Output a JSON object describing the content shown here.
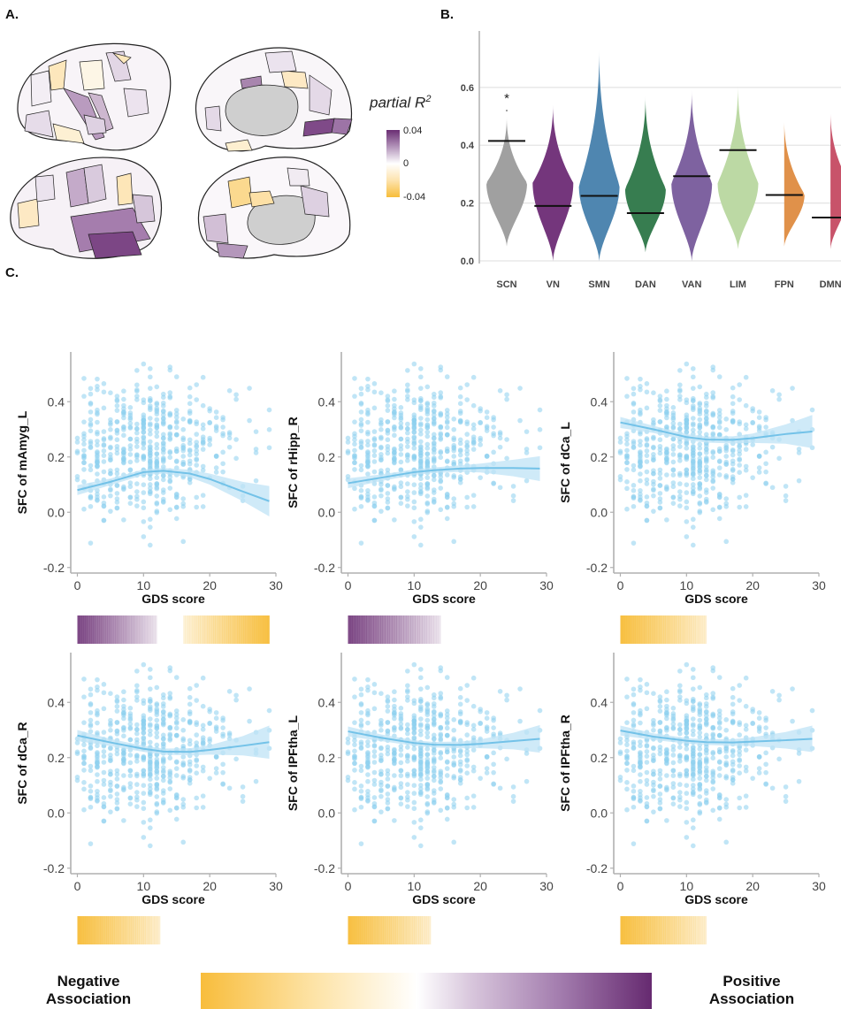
{
  "panels": {
    "a_label": "A.",
    "b_label": "B.",
    "c_label": "C."
  },
  "brain_maps": {
    "colorbar_title": "partial R",
    "colorbar_title_sup": "2",
    "colorbar_ticks": [
      "0.04",
      "0",
      "-0.04"
    ],
    "colors": {
      "positive": "#6a2d73",
      "zero": "#ffffff",
      "negative": "#f7bd3a",
      "medial_wall": "#cccccc"
    },
    "views": [
      "left-lateral",
      "left-medial",
      "right-lateral",
      "right-medial"
    ]
  },
  "legend": {
    "negative_line1": "Negative",
    "negative_line2": "Association",
    "positive_line1": "Positive",
    "positive_line2": "Association",
    "negative_color": "#f7bd3a",
    "positive_color": "#662a70"
  },
  "chart_data": [
    {
      "type": "violin",
      "id": "B",
      "categories": [
        "SCN",
        "VN",
        "SMN",
        "DAN",
        "VAN",
        "LIM",
        "FPN",
        "DMN"
      ],
      "colors": [
        "#a0a0a0",
        "#74367c",
        "#4f86b0",
        "#377d50",
        "#7e62a0",
        "#bcd9a4",
        "#e0914a",
        "#c8536a"
      ],
      "observed_lines": [
        0.415,
        0.19,
        0.225,
        0.165,
        0.293,
        0.383,
        0.228,
        0.15
      ],
      "violin_ranges": [
        [
          0.05,
          0.5
        ],
        [
          0.0,
          0.54
        ],
        [
          0.0,
          0.73
        ],
        [
          0.03,
          0.57
        ],
        [
          0.0,
          0.59
        ],
        [
          0.04,
          0.61
        ],
        [
          0.05,
          0.49
        ],
        [
          0.04,
          0.52
        ]
      ],
      "violin_modes": [
        0.27,
        0.27,
        0.26,
        0.25,
        0.27,
        0.27,
        0.23,
        0.26
      ],
      "significance": [
        {
          "category": "SCN",
          "label": "*",
          "y": 0.56
        }
      ],
      "yticks": [
        "0.0",
        "0.2",
        "0.4",
        "0.6"
      ],
      "ylim": [
        0.0,
        0.78
      ],
      "grid": true
    },
    {
      "type": "scatter",
      "id": "C1",
      "ylabel": "SFC of mAmyg_L",
      "xlabel": "GDS score",
      "xlim": [
        -1,
        30
      ],
      "ylim": [
        -0.22,
        0.58
      ],
      "xticks": [
        "0",
        "10",
        "20",
        "30"
      ],
      "yticks": [
        "-0.2",
        "0.0",
        "0.2",
        "0.4"
      ],
      "fit_x": [
        0,
        5,
        10,
        13,
        17,
        20,
        25,
        29
      ],
      "fit_y": [
        0.08,
        0.11,
        0.145,
        0.15,
        0.14,
        0.12,
        0.075,
        0.04
      ],
      "ci_halfwidth": [
        0.018,
        0.012,
        0.01,
        0.01,
        0.014,
        0.02,
        0.035,
        0.055
      ],
      "sig_bars": [
        {
          "from": 0,
          "to": 12,
          "direction": "positive"
        },
        {
          "from": 16,
          "to": 29,
          "direction": "negative"
        }
      ]
    },
    {
      "type": "scatter",
      "id": "C2",
      "ylabel": "SFC of rHipp_R",
      "xlabel": "GDS score",
      "xlim": [
        -1,
        30
      ],
      "ylim": [
        -0.22,
        0.58
      ],
      "xticks": [
        "0",
        "10",
        "20",
        "30"
      ],
      "yticks": [
        "-0.2",
        "0.0",
        "0.2",
        "0.4"
      ],
      "fit_x": [
        0,
        5,
        10,
        13,
        17,
        20,
        25,
        29
      ],
      "fit_y": [
        0.105,
        0.125,
        0.145,
        0.152,
        0.158,
        0.16,
        0.16,
        0.158
      ],
      "ci_halfwidth": [
        0.018,
        0.012,
        0.01,
        0.01,
        0.012,
        0.016,
        0.03,
        0.045
      ],
      "sig_bars": [
        {
          "from": 0,
          "to": 14,
          "direction": "positive"
        }
      ]
    },
    {
      "type": "scatter",
      "id": "C3",
      "ylabel": "SFC of dCa_L",
      "xlabel": "GDS score",
      "xlim": [
        -1,
        30
      ],
      "ylim": [
        -0.22,
        0.58
      ],
      "xticks": [
        "0",
        "10",
        "20",
        "30"
      ],
      "yticks": [
        "-0.2",
        "0.0",
        "0.2",
        "0.4"
      ],
      "fit_x": [
        0,
        5,
        10,
        13,
        17,
        20,
        25,
        29
      ],
      "fit_y": [
        0.325,
        0.3,
        0.272,
        0.263,
        0.262,
        0.268,
        0.283,
        0.292
      ],
      "ci_halfwidth": [
        0.02,
        0.013,
        0.011,
        0.011,
        0.013,
        0.017,
        0.035,
        0.06
      ],
      "sig_bars": [
        {
          "from": 0,
          "to": 13,
          "direction": "negative"
        }
      ]
    },
    {
      "type": "scatter",
      "id": "C4",
      "ylabel": "SFC of dCa_R",
      "xlabel": "GDS score",
      "xlim": [
        -1,
        30
      ],
      "ylim": [
        -0.22,
        0.58
      ],
      "xticks": [
        "0",
        "10",
        "20",
        "30"
      ],
      "yticks": [
        "-0.2",
        "0.0",
        "0.2",
        "0.4"
      ],
      "fit_x": [
        0,
        5,
        10,
        13,
        17,
        20,
        25,
        29
      ],
      "fit_y": [
        0.28,
        0.255,
        0.232,
        0.222,
        0.221,
        0.228,
        0.243,
        0.256
      ],
      "ci_halfwidth": [
        0.02,
        0.013,
        0.011,
        0.011,
        0.013,
        0.017,
        0.035,
        0.06
      ],
      "sig_bars": [
        {
          "from": 0,
          "to": 12.5,
          "direction": "negative"
        }
      ]
    },
    {
      "type": "scatter",
      "id": "C5",
      "ylabel": "SFC of IPFtha_L",
      "xlabel": "GDS score",
      "xlim": [
        -1,
        30
      ],
      "ylim": [
        -0.22,
        0.58
      ],
      "xticks": [
        "0",
        "10",
        "20",
        "30"
      ],
      "yticks": [
        "-0.2",
        "0.0",
        "0.2",
        "0.4"
      ],
      "fit_x": [
        0,
        5,
        10,
        13,
        17,
        20,
        25,
        29
      ],
      "fit_y": [
        0.295,
        0.272,
        0.253,
        0.247,
        0.246,
        0.25,
        0.26,
        0.268
      ],
      "ci_halfwidth": [
        0.018,
        0.012,
        0.01,
        0.01,
        0.012,
        0.016,
        0.03,
        0.05
      ],
      "sig_bars": [
        {
          "from": 0,
          "to": 12.5,
          "direction": "negative"
        }
      ]
    },
    {
      "type": "scatter",
      "id": "C6",
      "ylabel": "SFC of IPFtha_R",
      "xlabel": "GDS score",
      "xlim": [
        -1,
        30
      ],
      "ylim": [
        -0.22,
        0.58
      ],
      "xticks": [
        "0",
        "10",
        "20",
        "30"
      ],
      "yticks": [
        "-0.2",
        "0.0",
        "0.2",
        "0.4"
      ],
      "fit_x": [
        0,
        5,
        10,
        13,
        17,
        20,
        25,
        29
      ],
      "fit_y": [
        0.298,
        0.276,
        0.261,
        0.256,
        0.255,
        0.258,
        0.263,
        0.268
      ],
      "ci_halfwidth": [
        0.018,
        0.012,
        0.01,
        0.01,
        0.012,
        0.016,
        0.03,
        0.048
      ],
      "sig_bars": [
        {
          "from": 0,
          "to": 13,
          "direction": "negative"
        }
      ]
    }
  ],
  "scatter_style": {
    "point_color": "#8dcfee",
    "line_color": "#73c2e8",
    "ribbon_color": "#bfe3f5"
  }
}
